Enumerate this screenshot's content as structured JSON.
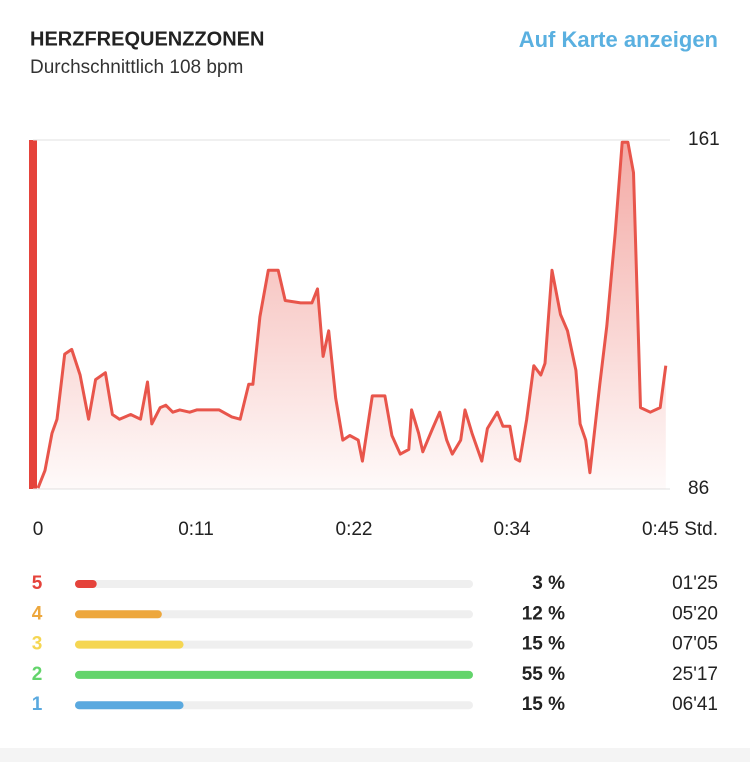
{
  "header": {
    "title": "HERZFREQUENZZONEN",
    "subtitle": "Durchschnittlich 108 bpm",
    "link": "Auf Karte anzeigen"
  },
  "chart_data": [
    {
      "type": "area",
      "color": "#e8554b",
      "x": [
        0,
        0.5,
        1.0,
        1.35,
        1.9,
        2.4,
        3.0,
        3.6,
        4.1,
        4.8,
        5.3,
        5.8,
        6.6,
        7.3,
        7.8,
        8.1,
        8.7,
        9.1,
        9.6,
        10.1,
        10.8,
        11.3,
        11.9,
        12.9,
        13.8,
        14.4,
        15.0,
        15.3,
        15.8,
        16.4,
        17.1,
        17.6,
        18.7,
        19.5,
        19.9,
        20.3,
        20.7,
        21.2,
        21.7,
        22.2,
        22.8,
        23.1,
        23.8,
        24.7,
        25.2,
        25.8,
        26.4,
        26.6,
        27.1,
        27.4,
        28.1,
        28.6,
        29.1,
        29.5,
        30.1,
        30.4,
        30.9,
        31.6,
        32.0,
        32.7,
        33.1,
        33.6,
        34.0,
        34.3,
        34.8,
        35.3,
        35.8,
        36.1,
        36.6,
        37.2,
        37.7,
        38.3,
        38.6,
        39.0,
        39.3,
        40.0,
        40.5,
        41.1,
        41.6,
        42.0,
        42.4,
        42.9,
        43.6,
        44.3,
        44.7
      ],
      "values": [
        86.2,
        90,
        98,
        101,
        115,
        116,
        110.5,
        101,
        109.5,
        111,
        102,
        101,
        102,
        101,
        109,
        100,
        103.5,
        104,
        102.5,
        103,
        102.5,
        103,
        103,
        103,
        101.5,
        101,
        108.5,
        108.5,
        123,
        133,
        133,
        126.5,
        126,
        126,
        129,
        114.5,
        120,
        105.5,
        96.5,
        97.5,
        96.5,
        92,
        106,
        106,
        97.5,
        93.5,
        94.5,
        103,
        98,
        94,
        99,
        102.5,
        96.5,
        93.5,
        96.5,
        103,
        98,
        92,
        99,
        102.5,
        99.5,
        99.5,
        92.5,
        92,
        101,
        112.5,
        110.5,
        113,
        133,
        123.5,
        120,
        111.5,
        100,
        96.5,
        89.5,
        108.5,
        121,
        141,
        160.5,
        160.5,
        154,
        103.5,
        102.5,
        103.5,
        112.5
      ],
      "xlim": [
        0,
        45
      ],
      "xticks": [
        0,
        {
          "value": 11.25,
          "label": "0:11"
        },
        {
          "value": 22.5,
          "label": "0:22"
        },
        {
          "value": 33.75,
          "label": "0:34"
        },
        {
          "value": 45,
          "label": "0:45 Std."
        }
      ],
      "ylim": [
        86,
        161
      ],
      "yticks": [
        86,
        161
      ],
      "grid": true
    },
    {
      "type": "zones",
      "categories": [
        "5",
        "4",
        "3",
        "2",
        "1"
      ],
      "values": [
        3,
        12,
        15,
        55,
        15
      ],
      "value_labels": [
        "3 %",
        "12 %",
        "15 %",
        "55 %",
        "15 %"
      ],
      "durations": [
        "01'25",
        "05'20",
        "07'05",
        "25'17",
        "06'41"
      ],
      "colors": [
        "#e5433b",
        "#eda73d",
        "#f5d652",
        "#63d46b",
        "#5aa9df"
      ],
      "xlim": [
        0,
        55
      ]
    }
  ]
}
